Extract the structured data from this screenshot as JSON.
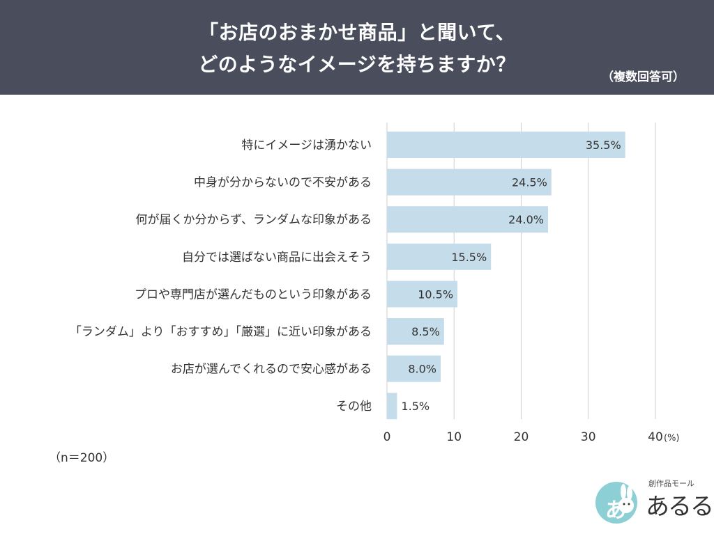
{
  "header": {
    "title_line1": "「お店のおまかせ商品」と聞いて、",
    "title_line2": "どのようなイメージを持ちますか？",
    "note": "（複数回答可）",
    "background": "#4a4e5c"
  },
  "sample_size": "（n＝200）",
  "logo": {
    "icon": "rabbit-icon",
    "mark": "あ",
    "tagline": "創作品モール",
    "name": "あるる"
  },
  "chart_data": {
    "type": "bar",
    "orientation": "horizontal",
    "categories": [
      "特にイメージは湧かない",
      "中身が分からないので不安がある",
      "何が届くか分からず、ランダムな印象がある",
      "自分では選ばない商品に出会えそう",
      "プロや専門店が選んだものという印象がある",
      "「ランダム」より「おすすめ」「厳選」に近い印象がある",
      "お店が選んでくれるので安心感がある",
      "その他"
    ],
    "values": [
      35.5,
      24.5,
      24.0,
      15.5,
      10.5,
      8.5,
      8.0,
      1.5
    ],
    "value_labels": [
      "35.5%",
      "24.5%",
      "24.0%",
      "15.5%",
      "10.5%",
      "8.5%",
      "8.0%",
      "1.5%"
    ],
    "xlim": [
      0,
      40
    ],
    "xticks": [
      0,
      10,
      20,
      30,
      40
    ],
    "xtick_labels": [
      "0",
      "10",
      "20",
      "30",
      "40"
    ],
    "unit_label": "(%)",
    "grid": true,
    "bar_color": "#c5dcea",
    "gridline_color": "#cfcfcf"
  }
}
